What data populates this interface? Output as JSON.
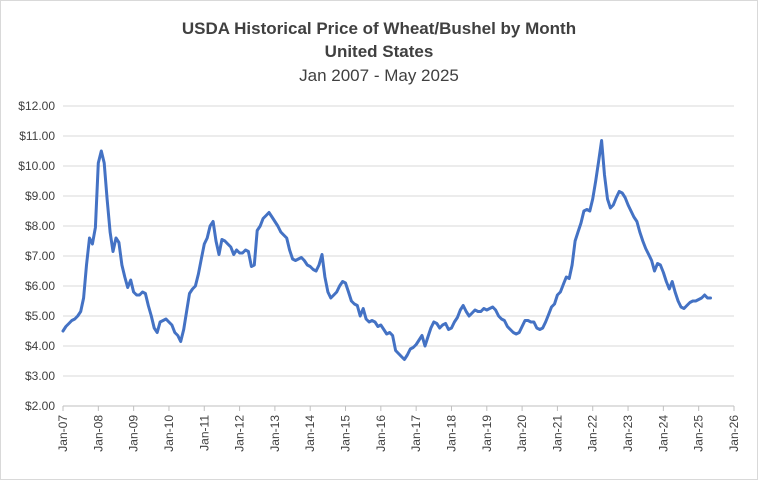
{
  "chart_data": {
    "type": "line",
    "title": "USDA Historical Price of Wheat/Bushel by Month",
    "subtitle": "United States",
    "subtitle2": "Jan 2007 - May 2025",
    "xlabel": "",
    "ylabel": "",
    "ylim": [
      2,
      12
    ],
    "xlim": [
      "2007-01",
      "2026-01"
    ],
    "grid": true,
    "legend": "none",
    "line_color": "#4472c4",
    "y_ticks": [
      "$2.00",
      "$3.00",
      "$4.00",
      "$5.00",
      "$6.00",
      "$7.00",
      "$8.00",
      "$9.00",
      "$10.00",
      "$11.00",
      "$12.00"
    ],
    "x_ticks": [
      "Jan-07",
      "Jan-08",
      "Jan-09",
      "Jan-10",
      "Jan-11",
      "Jan-12",
      "Jan-13",
      "Jan-14",
      "Jan-15",
      "Jan-16",
      "Jan-17",
      "Jan-18",
      "Jan-19",
      "Jan-20",
      "Jan-21",
      "Jan-22",
      "Jan-23",
      "Jan-24",
      "Jan-25",
      "Jan-26"
    ],
    "series": [
      {
        "x": [
          "2007-01",
          "2007-02",
          "2007-03",
          "2007-04",
          "2007-05",
          "2007-06",
          "2007-07",
          "2007-08",
          "2007-09",
          "2007-10",
          "2007-11",
          "2007-12",
          "2008-01",
          "2008-02",
          "2008-03",
          "2008-04",
          "2008-05",
          "2008-06",
          "2008-07",
          "2008-08",
          "2008-09",
          "2008-10",
          "2008-11",
          "2008-12",
          "2009-01",
          "2009-02",
          "2009-03",
          "2009-04",
          "2009-05",
          "2009-06",
          "2009-07",
          "2009-08",
          "2009-09",
          "2009-10",
          "2009-11",
          "2009-12",
          "2010-01",
          "2010-02",
          "2010-03",
          "2010-04",
          "2010-05",
          "2010-06",
          "2010-07",
          "2010-08",
          "2010-09",
          "2010-10",
          "2010-11",
          "2010-12",
          "2011-01",
          "2011-02",
          "2011-03",
          "2011-04",
          "2011-05",
          "2011-06",
          "2011-07",
          "2011-08",
          "2011-09",
          "2011-10",
          "2011-11",
          "2011-12",
          "2012-01",
          "2012-02",
          "2012-03",
          "2012-04",
          "2012-05",
          "2012-06",
          "2012-07",
          "2012-08",
          "2012-09",
          "2012-10",
          "2012-11",
          "2012-12",
          "2013-01",
          "2013-02",
          "2013-03",
          "2013-04",
          "2013-05",
          "2013-06",
          "2013-07",
          "2013-08",
          "2013-09",
          "2013-10",
          "2013-11",
          "2013-12",
          "2014-01",
          "2014-02",
          "2014-03",
          "2014-04",
          "2014-05",
          "2014-06",
          "2014-07",
          "2014-08",
          "2014-09",
          "2014-10",
          "2014-11",
          "2014-12",
          "2015-01",
          "2015-02",
          "2015-03",
          "2015-04",
          "2015-05",
          "2015-06",
          "2015-07",
          "2015-08",
          "2015-09",
          "2015-10",
          "2015-11",
          "2015-12",
          "2016-01",
          "2016-02",
          "2016-03",
          "2016-04",
          "2016-05",
          "2016-06",
          "2016-07",
          "2016-08",
          "2016-09",
          "2016-10",
          "2016-11",
          "2016-12",
          "2017-01",
          "2017-02",
          "2017-03",
          "2017-04",
          "2017-05",
          "2017-06",
          "2017-07",
          "2017-08",
          "2017-09",
          "2017-10",
          "2017-11",
          "2017-12",
          "2018-01",
          "2018-02",
          "2018-03",
          "2018-04",
          "2018-05",
          "2018-06",
          "2018-07",
          "2018-08",
          "2018-09",
          "2018-10",
          "2018-11",
          "2018-12",
          "2019-01",
          "2019-02",
          "2019-03",
          "2019-04",
          "2019-05",
          "2019-06",
          "2019-07",
          "2019-08",
          "2019-09",
          "2019-10",
          "2019-11",
          "2019-12",
          "2020-01",
          "2020-02",
          "2020-03",
          "2020-04",
          "2020-05",
          "2020-06",
          "2020-07",
          "2020-08",
          "2020-09",
          "2020-10",
          "2020-11",
          "2020-12",
          "2021-01",
          "2021-02",
          "2021-03",
          "2021-04",
          "2021-05",
          "2021-06",
          "2021-07",
          "2021-08",
          "2021-09",
          "2021-10",
          "2021-11",
          "2021-12",
          "2022-01",
          "2022-02",
          "2022-03",
          "2022-04",
          "2022-05",
          "2022-06",
          "2022-07",
          "2022-08",
          "2022-09",
          "2022-10",
          "2022-11",
          "2022-12",
          "2023-01",
          "2023-02",
          "2023-03",
          "2023-04",
          "2023-05",
          "2023-06",
          "2023-07",
          "2023-08",
          "2023-09",
          "2023-10",
          "2023-11",
          "2023-12",
          "2024-01",
          "2024-02",
          "2024-03",
          "2024-04",
          "2024-05",
          "2024-06",
          "2024-07",
          "2024-08",
          "2024-09",
          "2024-10",
          "2024-11",
          "2024-12",
          "2025-01",
          "2025-02",
          "2025-03",
          "2025-04",
          "2025-05"
        ],
        "values": [
          4.5,
          4.65,
          4.75,
          4.85,
          4.9,
          5.0,
          5.15,
          5.6,
          6.7,
          7.6,
          7.4,
          7.95,
          10.1,
          10.5,
          10.1,
          8.9,
          7.8,
          7.15,
          7.6,
          7.45,
          6.7,
          6.3,
          5.95,
          6.2,
          5.8,
          5.7,
          5.7,
          5.8,
          5.75,
          5.35,
          5.0,
          4.6,
          4.45,
          4.8,
          4.85,
          4.9,
          4.8,
          4.7,
          4.45,
          4.35,
          4.15,
          4.55,
          5.15,
          5.75,
          5.9,
          6.0,
          6.4,
          6.9,
          7.4,
          7.6,
          8.0,
          8.15,
          7.5,
          7.05,
          7.55,
          7.5,
          7.4,
          7.3,
          7.05,
          7.2,
          7.1,
          7.1,
          7.2,
          7.15,
          6.65,
          6.7,
          7.85,
          8.0,
          8.25,
          8.35,
          8.45,
          8.3,
          8.15,
          8.0,
          7.8,
          7.7,
          7.6,
          7.2,
          6.9,
          6.85,
          6.9,
          6.95,
          6.85,
          6.7,
          6.65,
          6.55,
          6.5,
          6.7,
          7.05,
          6.3,
          5.8,
          5.6,
          5.7,
          5.8,
          6.0,
          6.15,
          6.1,
          5.8,
          5.5,
          5.4,
          5.35,
          5.0,
          5.25,
          4.9,
          4.8,
          4.85,
          4.8,
          4.65,
          4.7,
          4.55,
          4.4,
          4.45,
          4.35,
          3.85,
          3.75,
          3.65,
          3.55,
          3.7,
          3.9,
          3.95,
          4.05,
          4.2,
          4.35,
          4.0,
          4.3,
          4.6,
          4.8,
          4.75,
          4.6,
          4.7,
          4.75,
          4.55,
          4.6,
          4.8,
          4.95,
          5.2,
          5.35,
          5.15,
          5.0,
          5.1,
          5.2,
          5.15,
          5.15,
          5.25,
          5.2,
          5.25,
          5.3,
          5.2,
          5.0,
          4.9,
          4.85,
          4.65,
          4.55,
          4.45,
          4.4,
          4.45,
          4.65,
          4.85,
          4.85,
          4.8,
          4.8,
          4.6,
          4.55,
          4.6,
          4.8,
          5.05,
          5.3,
          5.4,
          5.7,
          5.8,
          6.05,
          6.3,
          6.25,
          6.7,
          7.5,
          7.8,
          8.1,
          8.5,
          8.55,
          8.5,
          8.9,
          9.5,
          10.15,
          10.85,
          9.7,
          8.9,
          8.6,
          8.7,
          8.95,
          9.15,
          9.1,
          8.95,
          8.7,
          8.5,
          8.3,
          8.15,
          7.8,
          7.5,
          7.25,
          7.05,
          6.85,
          6.5,
          6.75,
          6.7,
          6.45,
          6.15,
          5.9,
          6.15,
          5.8,
          5.5,
          5.3,
          5.25,
          5.35,
          5.45,
          5.5,
          5.5,
          5.55,
          5.6,
          5.7,
          5.6,
          5.6
        ]
      }
    ]
  }
}
